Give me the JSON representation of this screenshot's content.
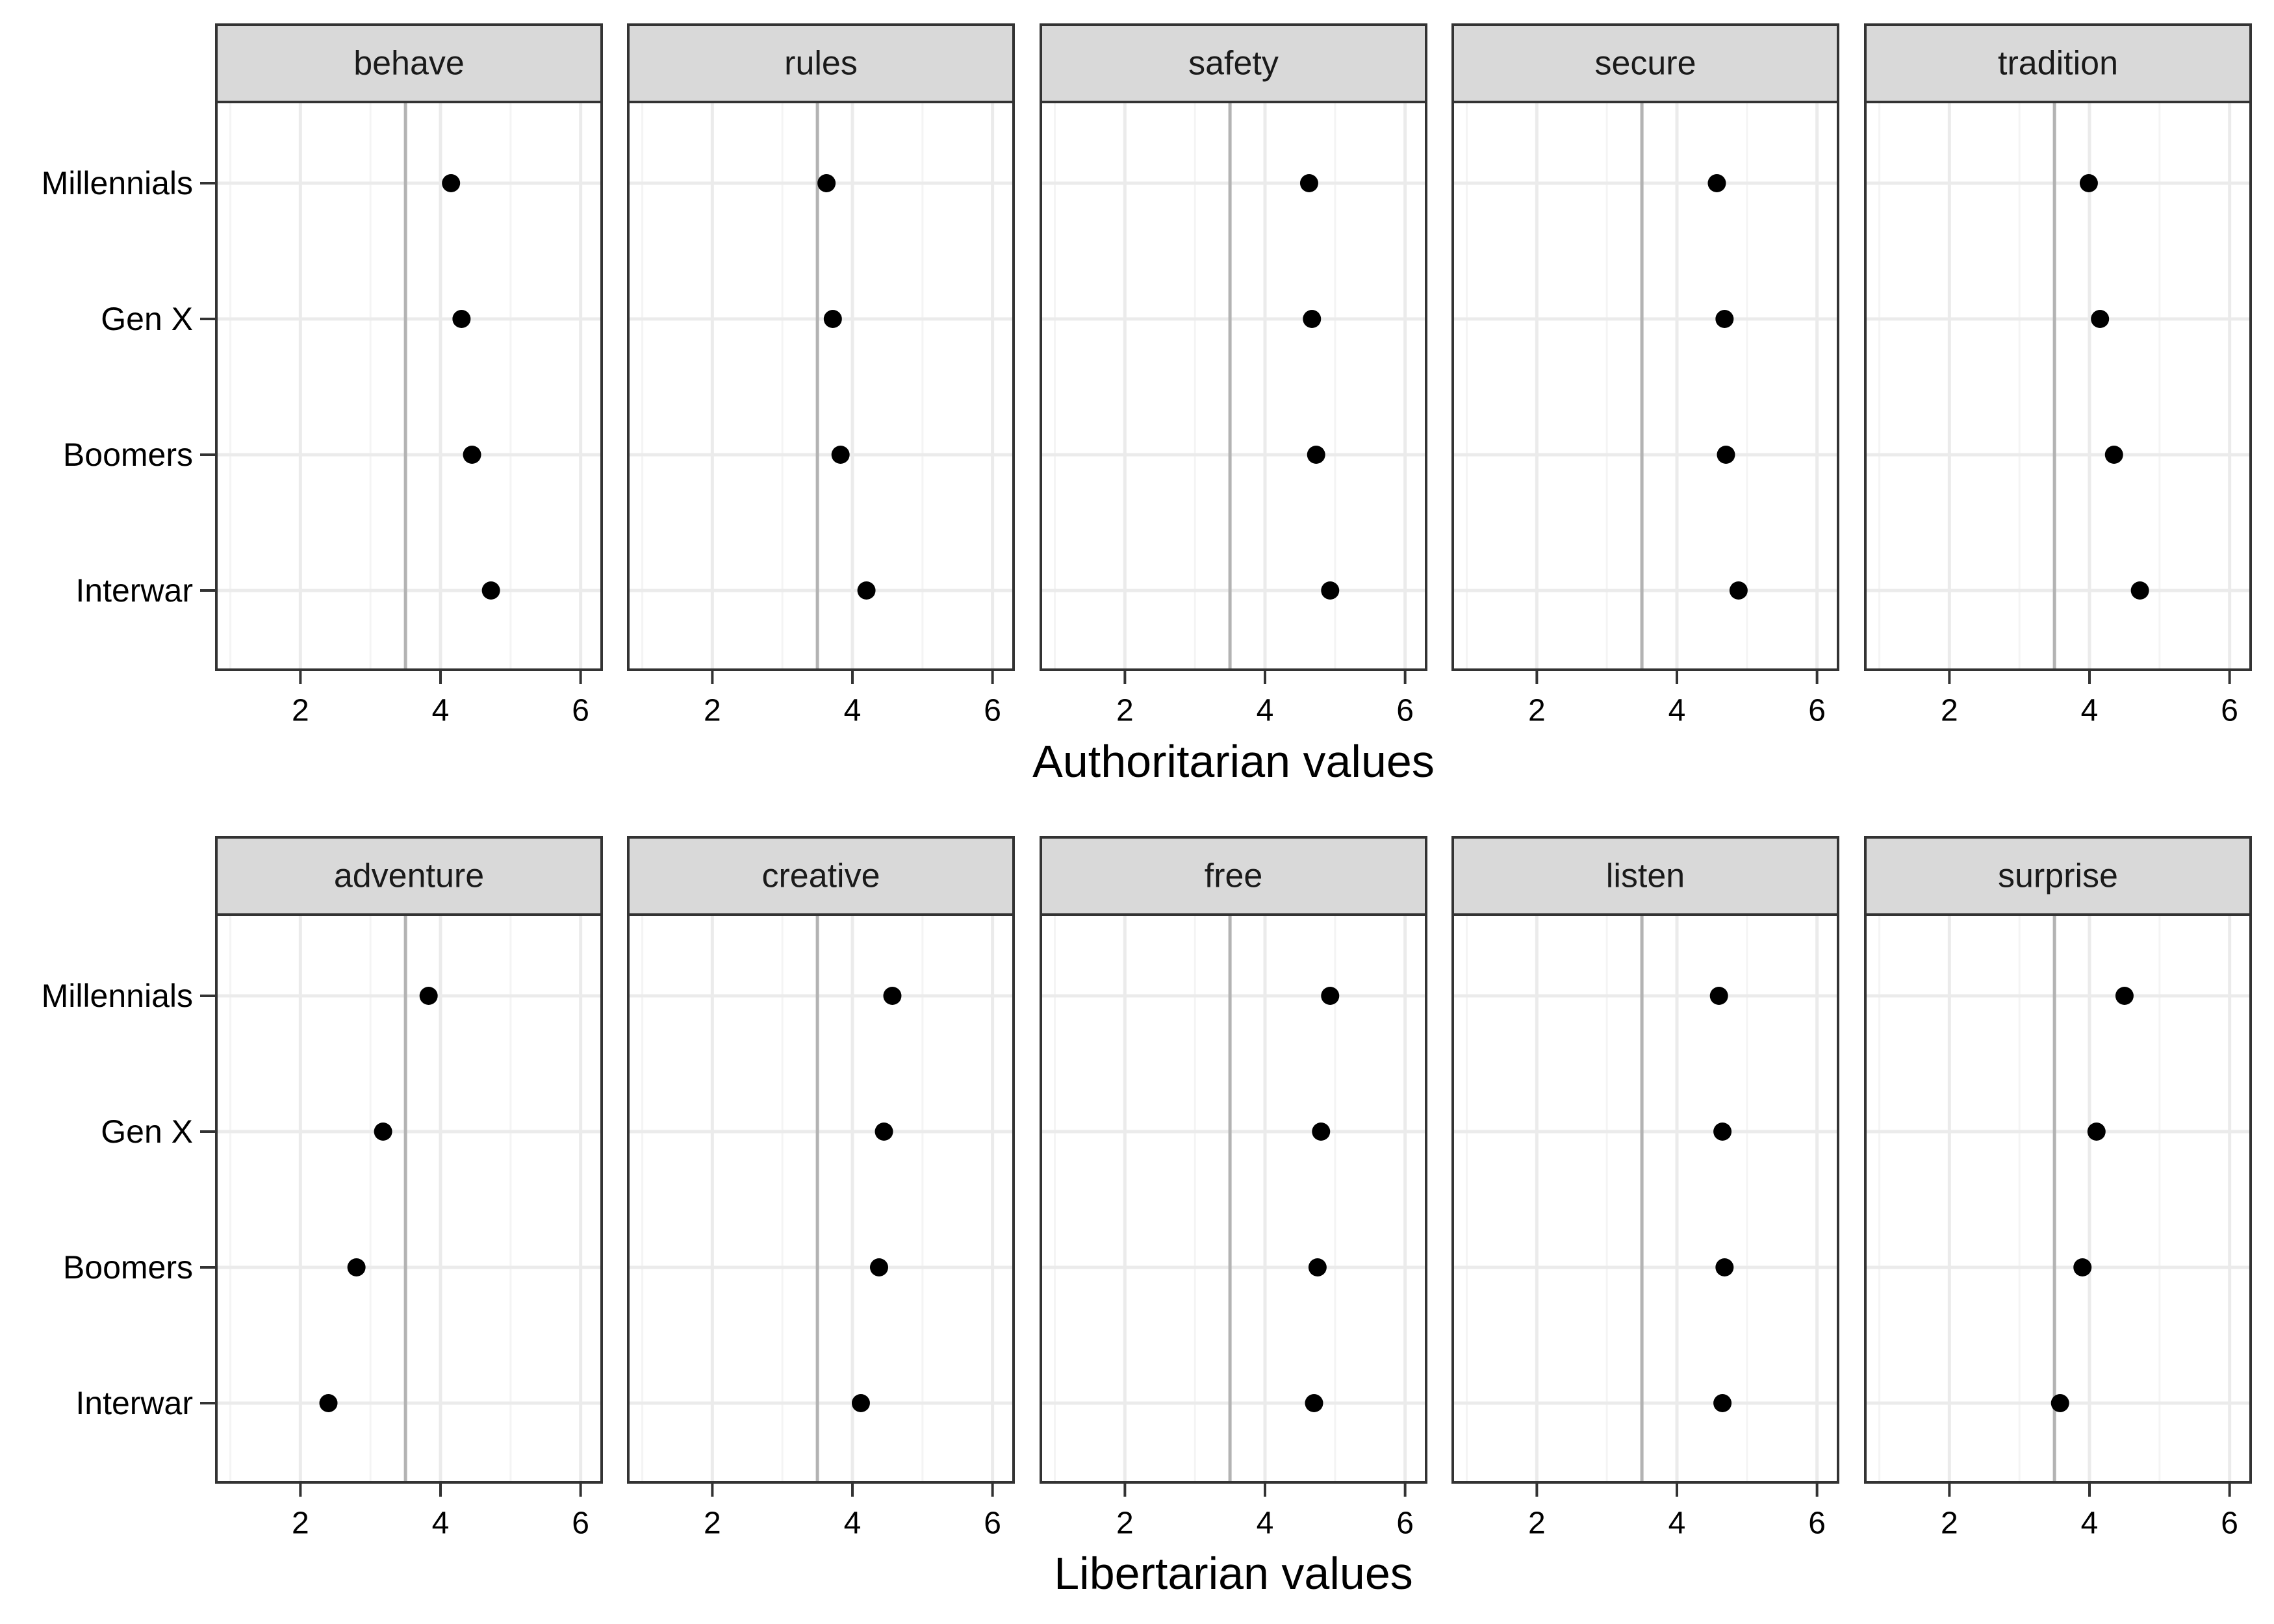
{
  "chart_data": [
    {
      "type": "scatter",
      "xlabel": "Authoritarian values",
      "ylabel": "",
      "xlim": [
        0.8,
        6.3
      ],
      "xticks": [
        2,
        4,
        6
      ],
      "x_reference_line": 3.5,
      "grid": true,
      "categories": [
        "Millennials",
        "Gen X",
        "Boomers",
        "Interwar"
      ],
      "series": [
        {
          "name": "behave",
          "values": [
            4.15,
            4.3,
            4.45,
            4.72
          ]
        },
        {
          "name": "rules",
          "values": [
            3.63,
            3.72,
            3.83,
            4.2
          ]
        },
        {
          "name": "safety",
          "values": [
            4.63,
            4.67,
            4.73,
            4.93
          ]
        },
        {
          "name": "secure",
          "values": [
            4.57,
            4.68,
            4.7,
            4.88
          ]
        },
        {
          "name": "tradition",
          "values": [
            3.99,
            4.15,
            4.35,
            4.72
          ]
        }
      ]
    },
    {
      "type": "scatter",
      "xlabel": "Libertarian values",
      "ylabel": "",
      "xlim": [
        0.8,
        6.3
      ],
      "xticks": [
        2,
        4,
        6
      ],
      "x_reference_line": 3.5,
      "grid": true,
      "categories": [
        "Millennials",
        "Gen X",
        "Boomers",
        "Interwar"
      ],
      "series": [
        {
          "name": "adventure",
          "values": [
            3.83,
            3.18,
            2.8,
            2.4
          ]
        },
        {
          "name": "creative",
          "values": [
            4.57,
            4.45,
            4.38,
            4.12
          ]
        },
        {
          "name": "free",
          "values": [
            4.93,
            4.8,
            4.75,
            4.7
          ]
        },
        {
          "name": "listen",
          "values": [
            4.6,
            4.65,
            4.68,
            4.65
          ]
        },
        {
          "name": "surprise",
          "values": [
            4.5,
            4.1,
            3.9,
            3.58
          ]
        }
      ]
    }
  ],
  "colors": {
    "points": "#000000",
    "strip_fill": "#d9d9d9",
    "border": "#333333",
    "grid_major": "#ebebeb",
    "grid_minor": "#f4f4f4",
    "reference_line": "#b3b3b3"
  }
}
